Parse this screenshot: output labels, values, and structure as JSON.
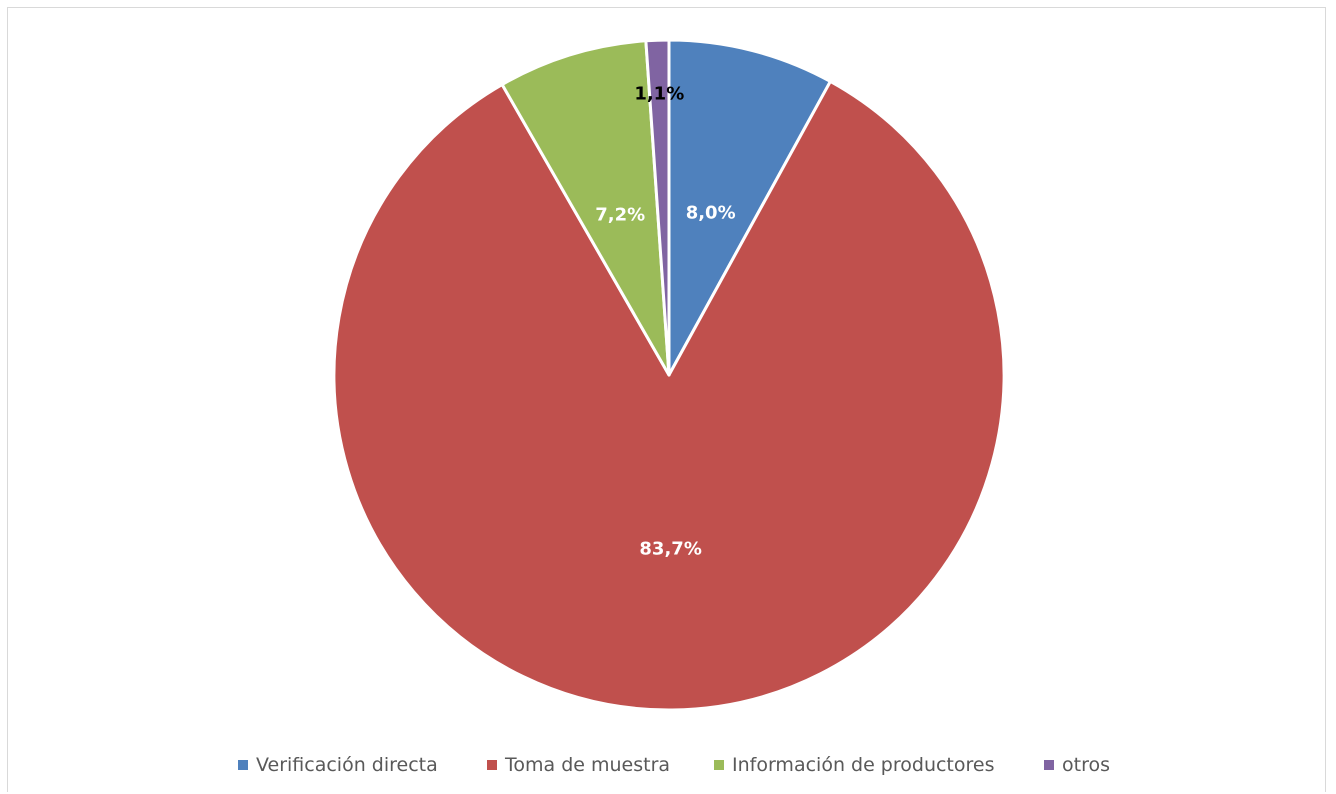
{
  "chart_data": {
    "type": "pie",
    "title": "",
    "slices": [
      {
        "label": "Verificación directa",
        "value": 8.0,
        "display": "8,0%",
        "color": "#4f81bd",
        "label_color": "#ffffff"
      },
      {
        "label": "Toma de muestra",
        "value": 83.7,
        "display": "83,7%",
        "color": "#c0504d",
        "label_color": "#ffffff"
      },
      {
        "label": "Información de productores",
        "value": 7.2,
        "display": "7,2%",
        "color": "#9bbb59",
        "label_color": "#ffffff"
      },
      {
        "label": "otros",
        "value": 1.1,
        "display": "1,1%",
        "color": "#8064a2",
        "label_color": "#000000"
      }
    ],
    "legend_position": "bottom"
  }
}
